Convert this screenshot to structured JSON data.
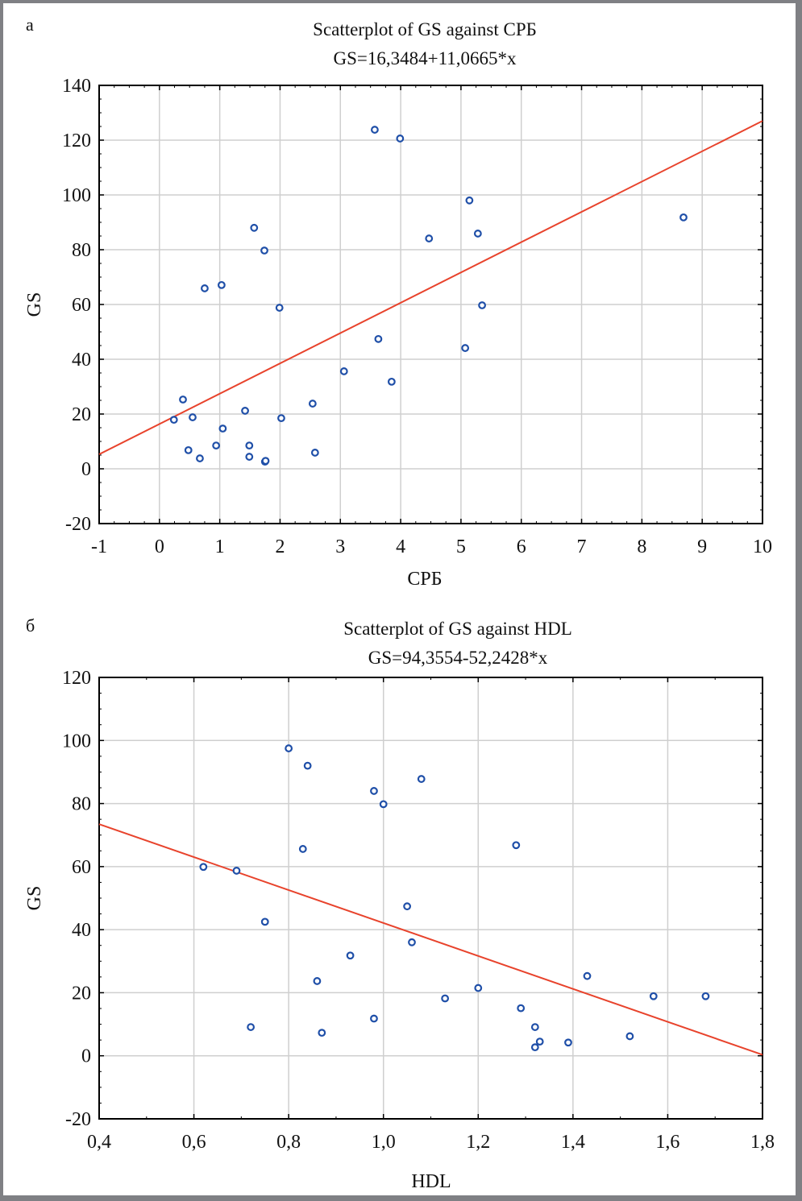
{
  "chart_data": [
    {
      "type": "scatter",
      "panel_label": "а",
      "title": "Scatterplot of GS against СРБ",
      "subtitle": "GS=16,3484+11,0665*x",
      "xlabel": "СРБ",
      "ylabel": "GS",
      "xlim": [
        -1,
        10
      ],
      "ylim": [
        -20,
        140
      ],
      "xticks": [
        "-1",
        "0",
        "1",
        "2",
        "3",
        "4",
        "5",
        "6",
        "7",
        "8",
        "9",
        "10"
      ],
      "yticks": [
        "-20",
        "0",
        "20",
        "40",
        "60",
        "80",
        "100",
        "120",
        "140"
      ],
      "xtick_values": [
        -1,
        0,
        1,
        2,
        3,
        4,
        5,
        6,
        7,
        8,
        9,
        10
      ],
      "ytick_values": [
        -20,
        0,
        20,
        40,
        60,
        80,
        100,
        120,
        140
      ],
      "grid": true,
      "regression": {
        "intercept": 16.3484,
        "slope": 11.0665
      },
      "colors": {
        "points": "#1f4fa8",
        "line": "#e8432c",
        "grid": "#cfcfcf"
      },
      "points": [
        [
          3.57,
          123.8
        ],
        [
          3.99,
          120.6
        ],
        [
          5.14,
          98.0
        ],
        [
          5.28,
          85.9
        ],
        [
          4.47,
          84.1
        ],
        [
          1.57,
          88.0
        ],
        [
          1.74,
          79.7
        ],
        [
          0.75,
          65.9
        ],
        [
          1.03,
          67.1
        ],
        [
          1.99,
          58.8
        ],
        [
          5.35,
          59.7
        ],
        [
          3.63,
          47.4
        ],
        [
          5.07,
          44.1
        ],
        [
          3.06,
          35.6
        ],
        [
          3.85,
          31.8
        ],
        [
          0.39,
          25.3
        ],
        [
          2.54,
          23.8
        ],
        [
          1.42,
          21.2
        ],
        [
          0.24,
          17.9
        ],
        [
          0.55,
          18.8
        ],
        [
          2.02,
          18.5
        ],
        [
          1.05,
          14.7
        ],
        [
          0.94,
          8.5
        ],
        [
          1.49,
          8.5
        ],
        [
          0.48,
          6.8
        ],
        [
          2.58,
          5.9
        ],
        [
          0.67,
          3.8
        ],
        [
          1.49,
          4.4
        ],
        [
          1.75,
          2.6
        ],
        [
          1.76,
          2.9
        ],
        [
          8.69,
          91.8
        ]
      ]
    },
    {
      "type": "scatter",
      "panel_label": "б",
      "title": "Scatterplot of GS against HDL",
      "subtitle": "GS=94,3554-52,2428*x",
      "xlabel": "HDL",
      "ylabel": "GS",
      "xlim": [
        0.4,
        1.8
      ],
      "ylim": [
        -20,
        120
      ],
      "xticks": [
        "0,4",
        "0,6",
        "0,8",
        "1,0",
        "1,2",
        "1,4",
        "1,6",
        "1,8"
      ],
      "yticks": [
        "-20",
        "0",
        "20",
        "40",
        "60",
        "80",
        "100",
        "120"
      ],
      "xtick_values": [
        0.4,
        0.6,
        0.8,
        1.0,
        1.2,
        1.4,
        1.6,
        1.8
      ],
      "ytick_values": [
        -20,
        0,
        20,
        40,
        60,
        80,
        100,
        120
      ],
      "grid": true,
      "regression": {
        "intercept": 94.3554,
        "slope": -52.2428
      },
      "colors": {
        "points": "#1f4fa8",
        "line": "#e8432c",
        "grid": "#cfcfcf"
      },
      "points": [
        [
          0.8,
          97.5
        ],
        [
          0.84,
          92.0
        ],
        [
          0.98,
          84.0
        ],
        [
          1.0,
          79.8
        ],
        [
          1.08,
          87.8
        ],
        [
          0.83,
          65.6
        ],
        [
          1.28,
          66.8
        ],
        [
          0.62,
          59.9
        ],
        [
          0.69,
          58.7
        ],
        [
          0.75,
          42.5
        ],
        [
          1.05,
          47.4
        ],
        [
          1.06,
          36.0
        ],
        [
          0.93,
          31.8
        ],
        [
          0.86,
          23.7
        ],
        [
          1.2,
          21.5
        ],
        [
          1.13,
          18.2
        ],
        [
          1.43,
          25.3
        ],
        [
          1.57,
          18.9
        ],
        [
          1.68,
          18.9
        ],
        [
          1.29,
          15.1
        ],
        [
          0.72,
          9.1
        ],
        [
          0.87,
          7.3
        ],
        [
          0.98,
          11.8
        ],
        [
          1.32,
          9.1
        ],
        [
          1.32,
          2.7
        ],
        [
          1.33,
          4.5
        ],
        [
          1.39,
          4.2
        ],
        [
          1.52,
          6.2
        ]
      ]
    }
  ]
}
